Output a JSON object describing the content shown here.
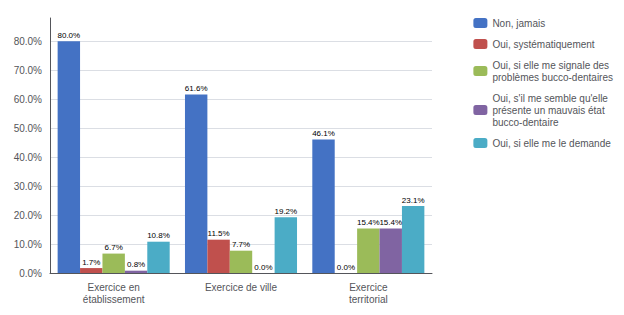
{
  "chart_data": {
    "type": "bar",
    "categories": [
      "Exercice en\nétablissement",
      "Exercice de ville",
      "Exercice\nterritorial"
    ],
    "series": [
      {
        "name": "Non, jamais",
        "color": "#4472C4",
        "values": [
          80.0,
          61.6,
          46.1
        ],
        "value_labels": [
          "80.0%",
          "61.6%",
          "46.1%"
        ]
      },
      {
        "name": "Oui, systématiquement",
        "color": "#C0504D",
        "values": [
          1.7,
          11.5,
          0.0
        ],
        "value_labels": [
          "1.7%",
          "11.5%",
          "0.0%"
        ]
      },
      {
        "name": "Oui, si elle me signale des\nproblèmes bucco-dentaires",
        "color": "#9BBB59",
        "values": [
          6.7,
          7.7,
          15.4
        ],
        "value_labels": [
          "6.7%",
          "7.7%",
          "15.4%"
        ]
      },
      {
        "name": "Oui, s'il me semble qu'elle\nprésente un mauvais état\nbucco-dentaire",
        "color": "#8064A2",
        "values": [
          0.8,
          0.0,
          15.4
        ],
        "value_labels": [
          "0.8%",
          "0.0%",
          "15.4%"
        ]
      },
      {
        "name": "Oui, si elle me le demande",
        "color": "#4BACC6",
        "values": [
          10.8,
          19.2,
          23.1
        ],
        "value_labels": [
          "10.8%",
          "19.2%",
          "23.1%"
        ]
      }
    ],
    "ylim": [
      0,
      88
    ],
    "yticks": [
      {
        "value": 0,
        "label": "0.0%"
      },
      {
        "value": 10,
        "label": "10.0%"
      },
      {
        "value": 20,
        "label": "20.0%"
      },
      {
        "value": 30,
        "label": "30.0%"
      },
      {
        "value": 40,
        "label": "40.0%"
      },
      {
        "value": 50,
        "label": "50.0%"
      },
      {
        "value": 60,
        "label": "60.0%"
      },
      {
        "value": 70,
        "label": "70.0%"
      },
      {
        "value": 80,
        "label": "80.0%"
      }
    ],
    "grid": true,
    "legend": "right",
    "data_labels": true
  }
}
